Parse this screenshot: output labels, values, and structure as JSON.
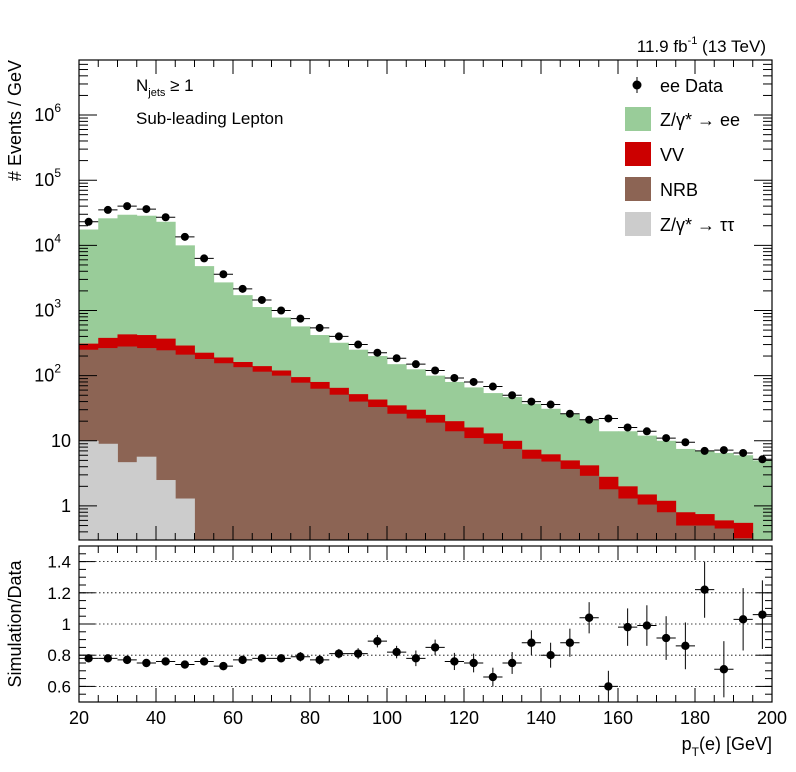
{
  "header": {
    "lumi": "11.9 fb",
    "lumi_exp": "-1",
    "energy": " (13 TeV)"
  },
  "labels": {
    "njets_prefix": "N",
    "njets_sub": "jets",
    "njets_suffix": " ≥ 1",
    "lepton": "Sub-leading Lepton"
  },
  "legend": [
    {
      "key": "data",
      "text": "ee Data",
      "color": "#000000",
      "kind": "marker"
    },
    {
      "key": "dy_ee",
      "text": "Z/γ* → ee",
      "color": "#99cc99",
      "kind": "box"
    },
    {
      "key": "vv",
      "text": "VV",
      "color": "#cc0000",
      "kind": "box"
    },
    {
      "key": "nrb",
      "text": "NRB",
      "color": "#8c6454",
      "kind": "box"
    },
    {
      "key": "dy_tt",
      "text": "Z/γ* → ττ",
      "color": "#cccccc",
      "kind": "box"
    }
  ],
  "chart_data": [
    {
      "type": "area",
      "scale": "log",
      "ylabel": "# Events / GeV",
      "xlim": [
        20,
        200
      ],
      "ylim": [
        0.3,
        7000000
      ],
      "yticks": [
        {
          "value": 1,
          "label": "1"
        },
        {
          "value": 10,
          "label": "10"
        },
        {
          "value": 100,
          "label": "10",
          "exp": "2"
        },
        {
          "value": 1000,
          "label": "10",
          "exp": "3"
        },
        {
          "value": 10000,
          "label": "10",
          "exp": "4"
        },
        {
          "value": 100000,
          "label": "10",
          "exp": "5"
        },
        {
          "value": 1000000,
          "label": "10",
          "exp": "6"
        }
      ],
      "bin_edges": [
        20,
        25,
        30,
        35,
        40,
        45,
        50,
        55,
        60,
        65,
        70,
        75,
        80,
        85,
        90,
        95,
        100,
        105,
        110,
        115,
        120,
        125,
        130,
        135,
        140,
        145,
        150,
        155,
        160,
        165,
        170,
        175,
        180,
        185,
        190,
        195,
        200
      ],
      "series": [
        {
          "name": "Z/γ* → ττ",
          "color": "#cccccc",
          "cumulative_top": [
            10,
            9,
            4.7,
            5.7,
            2.5,
            1.3,
            0,
            0,
            0,
            0,
            0,
            0,
            0,
            0,
            0,
            0,
            0,
            0,
            0,
            0,
            0,
            0,
            0,
            0,
            0,
            0,
            0,
            0,
            0,
            0,
            0,
            0,
            0,
            0,
            0,
            0
          ]
        },
        {
          "name": "NRB",
          "color": "#8c6454",
          "cumulative_top": [
            250,
            265,
            280,
            265,
            245,
            210,
            180,
            155,
            135,
            115,
            100,
            78,
            63,
            51,
            40,
            33,
            26,
            22,
            19,
            14,
            11,
            9,
            7.5,
            5.3,
            4.8,
            3.7,
            2.9,
            1.8,
            1.3,
            1.05,
            0.8,
            0.5,
            0.5,
            0.45,
            0.32,
            0.2
          ]
        },
        {
          "name": "VV",
          "color": "#cc0000",
          "cumulative_top": [
            310,
            380,
            430,
            420,
            370,
            290,
            225,
            190,
            162,
            140,
            120,
            95,
            80,
            65,
            52,
            43,
            35,
            30,
            25,
            20,
            16,
            13,
            10,
            7.3,
            6.2,
            5,
            4.2,
            2.8,
            2,
            1.5,
            1.2,
            0.8,
            0.75,
            0.6,
            0.55,
            0.3
          ]
        },
        {
          "name": "Z/γ* → ee",
          "color": "#99cc99",
          "cumulative_top": [
            17500,
            26000,
            29500,
            28500,
            23000,
            10000,
            4800,
            2700,
            1720,
            1130,
            780,
            570,
            420,
            320,
            250,
            200,
            150,
            125,
            100,
            80,
            66,
            54,
            47,
            37,
            31,
            26,
            21,
            14,
            14,
            12,
            10,
            7.5,
            7,
            6.5,
            6,
            5
          ]
        }
      ],
      "data_points": {
        "name": "ee Data",
        "x": [
          22.5,
          27.5,
          32.5,
          37.5,
          42.5,
          47.5,
          52.5,
          57.5,
          62.5,
          67.5,
          72.5,
          77.5,
          82.5,
          87.5,
          92.5,
          97.5,
          102.5,
          107.5,
          112.5,
          117.5,
          122.5,
          127.5,
          132.5,
          137.5,
          142.5,
          147.5,
          152.5,
          157.5,
          162.5,
          167.5,
          172.5,
          177.5,
          182.5,
          187.5,
          192.5,
          197.5
        ],
        "y": [
          23000,
          35000,
          40000,
          36000,
          27000,
          13500,
          6300,
          3600,
          2150,
          1450,
          1000,
          750,
          540,
          400,
          300,
          225,
          185,
          150,
          120,
          92,
          80,
          68,
          50,
          40,
          36,
          26,
          21,
          22,
          16,
          14,
          11,
          9.5,
          7,
          7.2,
          6.5,
          5.2
        ]
      }
    },
    {
      "type": "scatter",
      "ylabel": "Simulation/Data",
      "xlabel": "p_T(e) [GeV]",
      "xlim": [
        20,
        200
      ],
      "ylim": [
        0.5,
        1.5
      ],
      "yticks": [
        0.6,
        0.8,
        1.0,
        1.2,
        1.4
      ],
      "ytick_labels": [
        "0.6",
        "0.8",
        "1",
        "1.2",
        "1.4"
      ],
      "xticks": [
        20,
        40,
        60,
        80,
        100,
        120,
        140,
        160,
        180,
        200
      ],
      "xtick_labels": [
        "20",
        "40",
        "60",
        "80",
        "100",
        "120",
        "140",
        "160",
        "180",
        "200"
      ],
      "x": [
        22.5,
        27.5,
        32.5,
        37.5,
        42.5,
        47.5,
        52.5,
        57.5,
        62.5,
        67.5,
        72.5,
        77.5,
        82.5,
        87.5,
        92.5,
        97.5,
        102.5,
        107.5,
        112.5,
        117.5,
        122.5,
        127.5,
        132.5,
        137.5,
        142.5,
        147.5,
        152.5,
        157.5,
        162.5,
        167.5,
        172.5,
        177.5,
        182.5,
        187.5,
        192.5,
        197.5
      ],
      "y": [
        0.78,
        0.78,
        0.77,
        0.75,
        0.76,
        0.74,
        0.76,
        0.73,
        0.77,
        0.78,
        0.78,
        0.79,
        0.77,
        0.81,
        0.81,
        0.89,
        0.82,
        0.78,
        0.85,
        0.76,
        0.75,
        0.66,
        0.75,
        0.88,
        0.8,
        0.88,
        1.04,
        0.6,
        0.98,
        0.99,
        0.91,
        0.86,
        1.22,
        0.71,
        1.03,
        1.06
      ],
      "yerr": [
        0.01,
        0.01,
        0.01,
        0.01,
        0.01,
        0.015,
        0.015,
        0.02,
        0.02,
        0.02,
        0.025,
        0.03,
        0.03,
        0.03,
        0.035,
        0.04,
        0.04,
        0.05,
        0.05,
        0.055,
        0.06,
        0.06,
        0.07,
        0.08,
        0.08,
        0.09,
        0.1,
        0.1,
        0.12,
        0.13,
        0.14,
        0.15,
        0.18,
        0.18,
        0.2,
        0.22
      ]
    }
  ]
}
